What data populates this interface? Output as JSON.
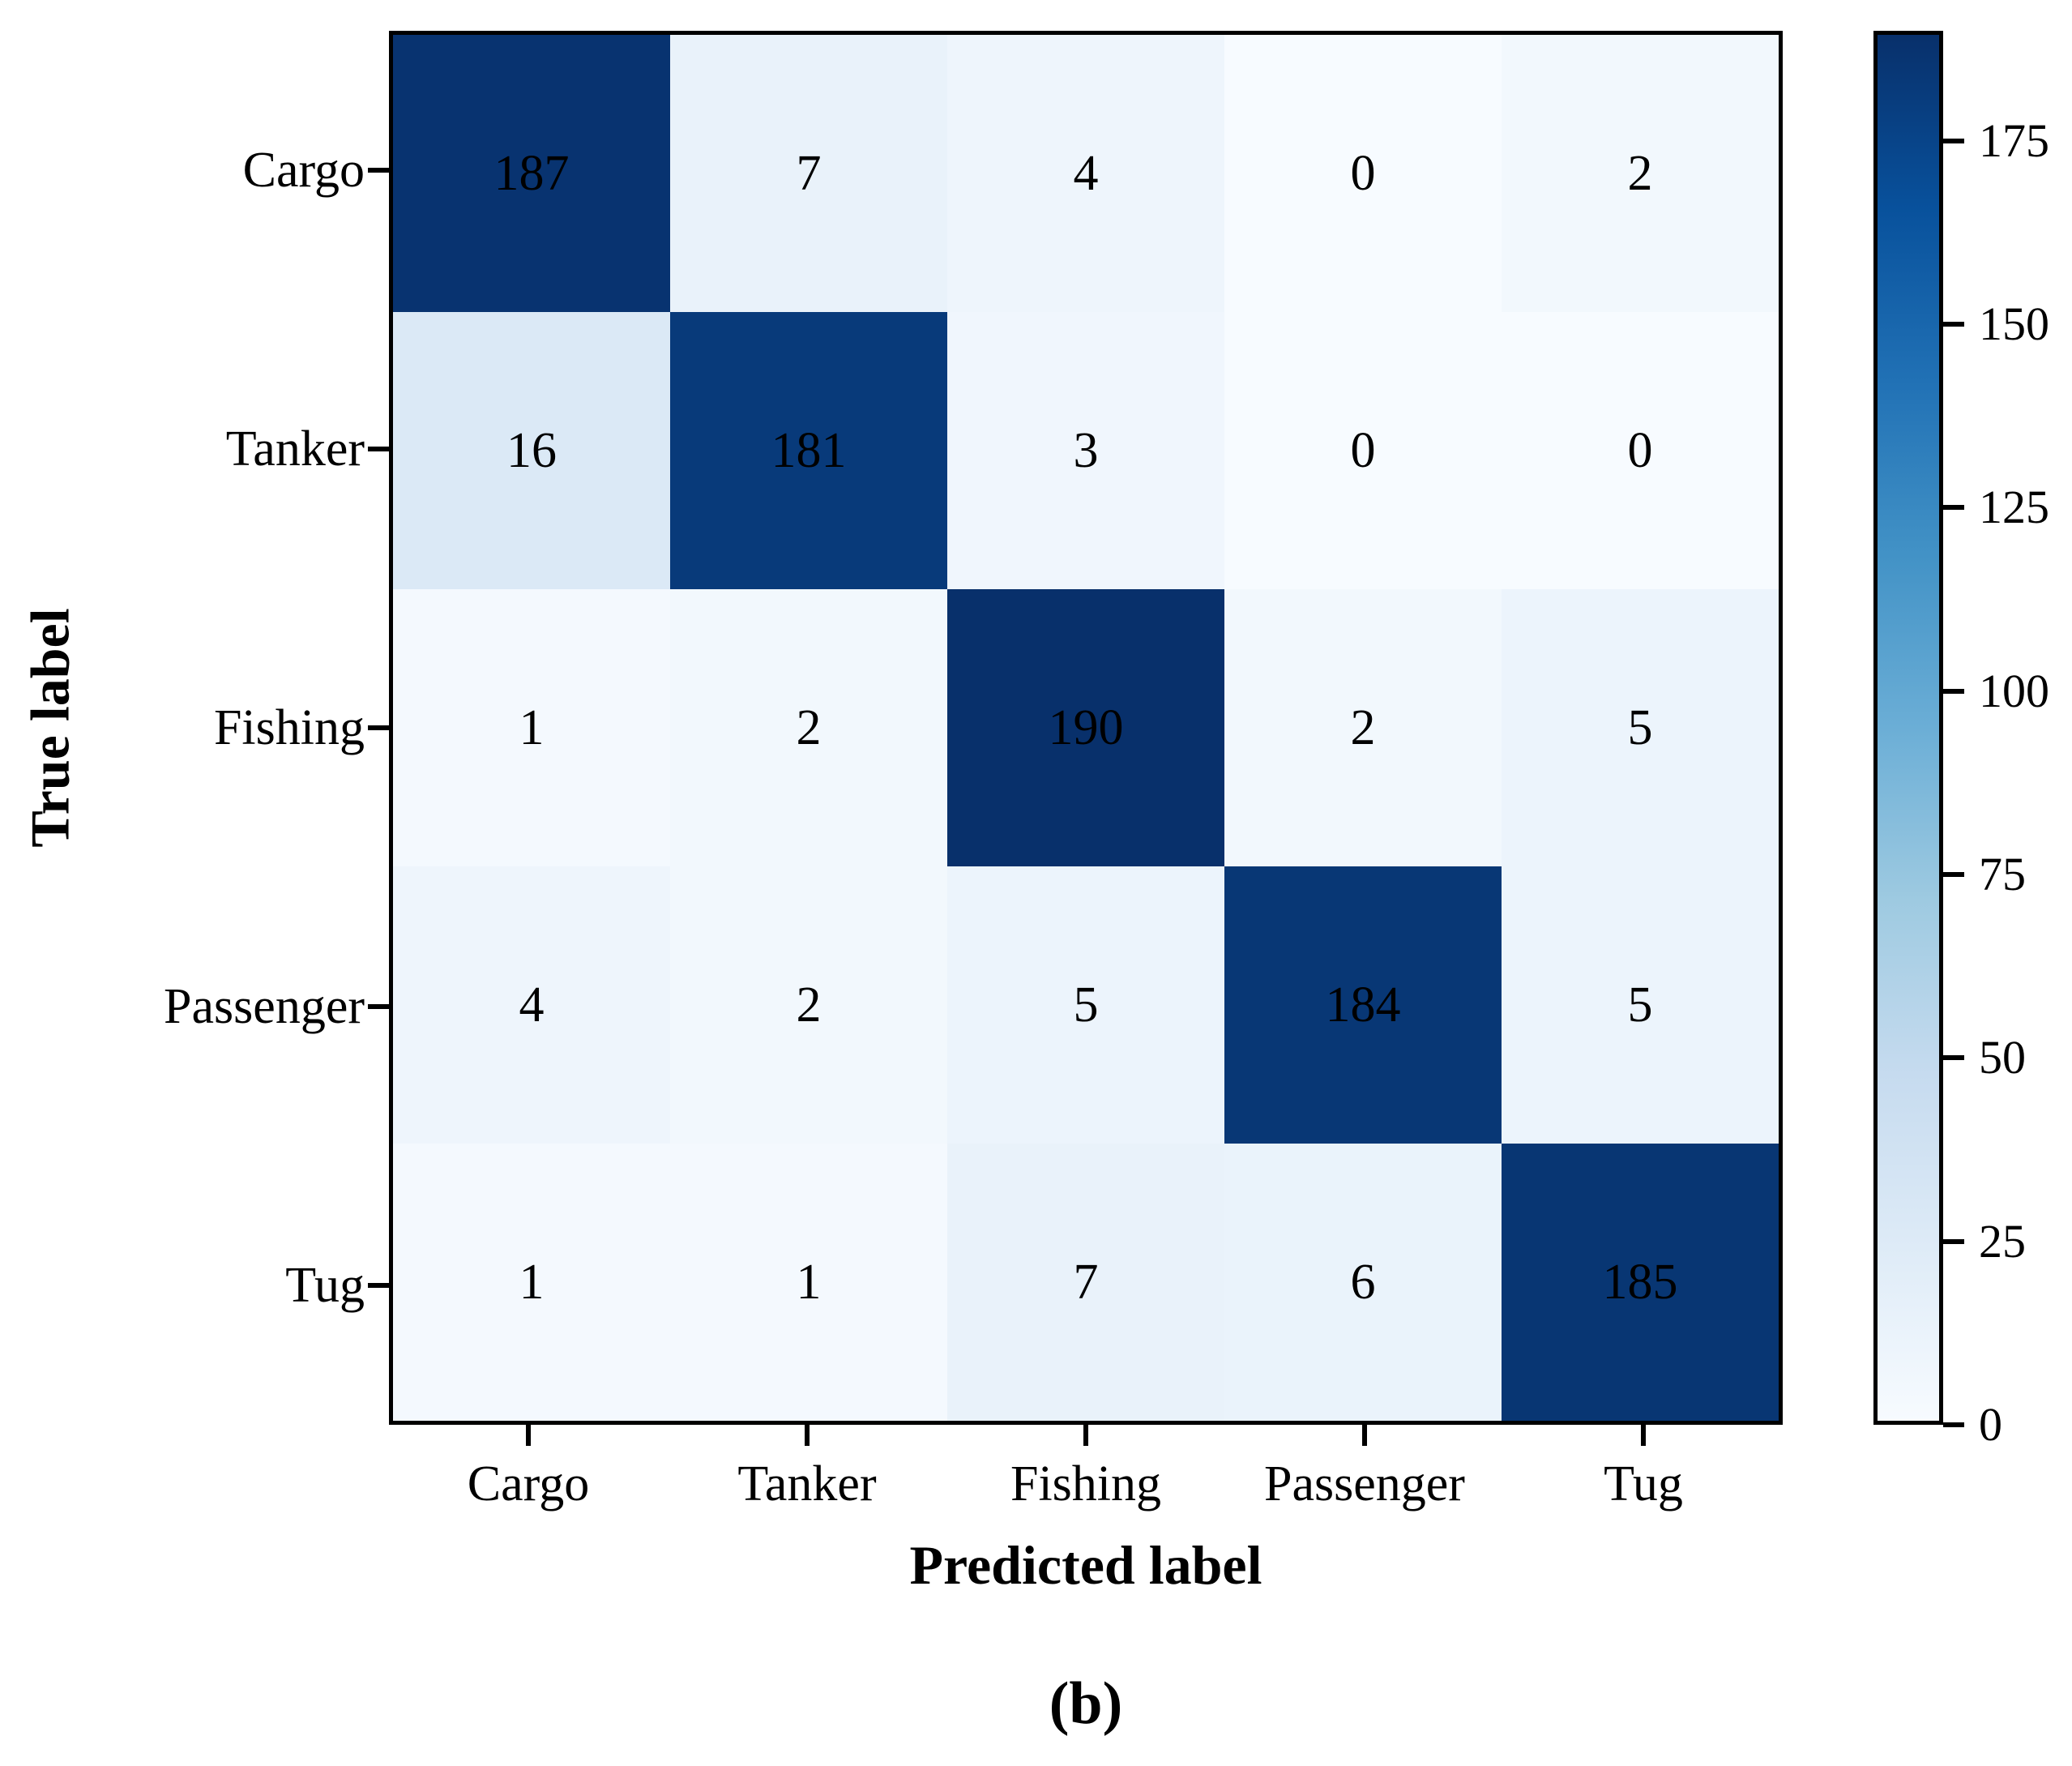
{
  "chart_data": {
    "type": "heatmap",
    "title": "",
    "xlabel": "Predicted label",
    "ylabel": "True label",
    "caption": "(b)",
    "categories": [
      "Cargo",
      "Tanker",
      "Fishing",
      "Passenger",
      "Tug"
    ],
    "matrix": [
      [
        187,
        7,
        4,
        0,
        2
      ],
      [
        16,
        181,
        3,
        0,
        0
      ],
      [
        1,
        2,
        190,
        2,
        5
      ],
      [
        4,
        2,
        5,
        184,
        5
      ],
      [
        1,
        1,
        7,
        6,
        185
      ]
    ],
    "colormap": "Blues",
    "vmin": 0,
    "vmax": 190,
    "colorbar_ticks": [
      0,
      25,
      50,
      75,
      100,
      125,
      150,
      175
    ],
    "legend_position": "right-colorbar",
    "grid": false
  },
  "colors": {
    "colormap_anchors": [
      "#f7fbff",
      "#deebf7",
      "#c6dbef",
      "#9ecae1",
      "#6baed6",
      "#4292c6",
      "#2171b5",
      "#08519c",
      "#08306b"
    ],
    "cell_text": "#000000",
    "axis": "#000000",
    "background": "#ffffff"
  }
}
